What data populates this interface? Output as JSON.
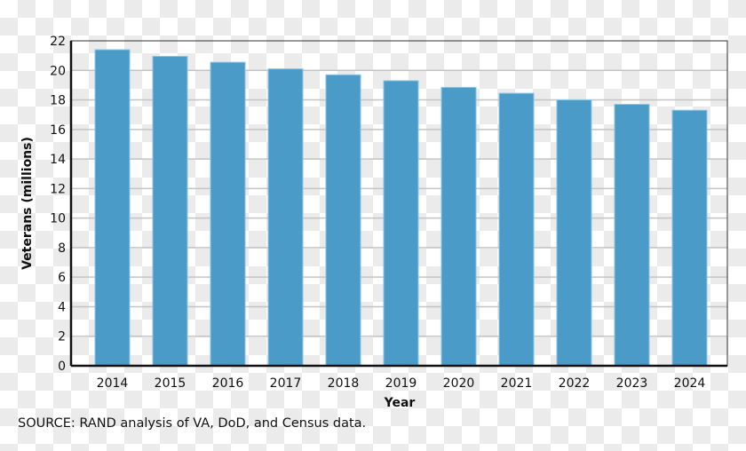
{
  "chart_data": {
    "type": "bar",
    "categories": [
      "2014",
      "2015",
      "2016",
      "2017",
      "2018",
      "2019",
      "2020",
      "2021",
      "2022",
      "2023",
      "2024"
    ],
    "values": [
      21.4,
      20.95,
      20.55,
      20.1,
      19.7,
      19.3,
      18.85,
      18.45,
      18.0,
      17.7,
      17.3
    ],
    "xlabel": "Year",
    "ylabel": "Veterans (millions)",
    "ylim": [
      0,
      22
    ],
    "yticks": [
      0,
      2,
      4,
      6,
      8,
      10,
      12,
      14,
      16,
      18,
      20,
      22
    ],
    "grid": true,
    "bar_color": "#4a9bc8"
  },
  "source": "SOURCE: RAND analysis of VA, DoD, and Census data."
}
